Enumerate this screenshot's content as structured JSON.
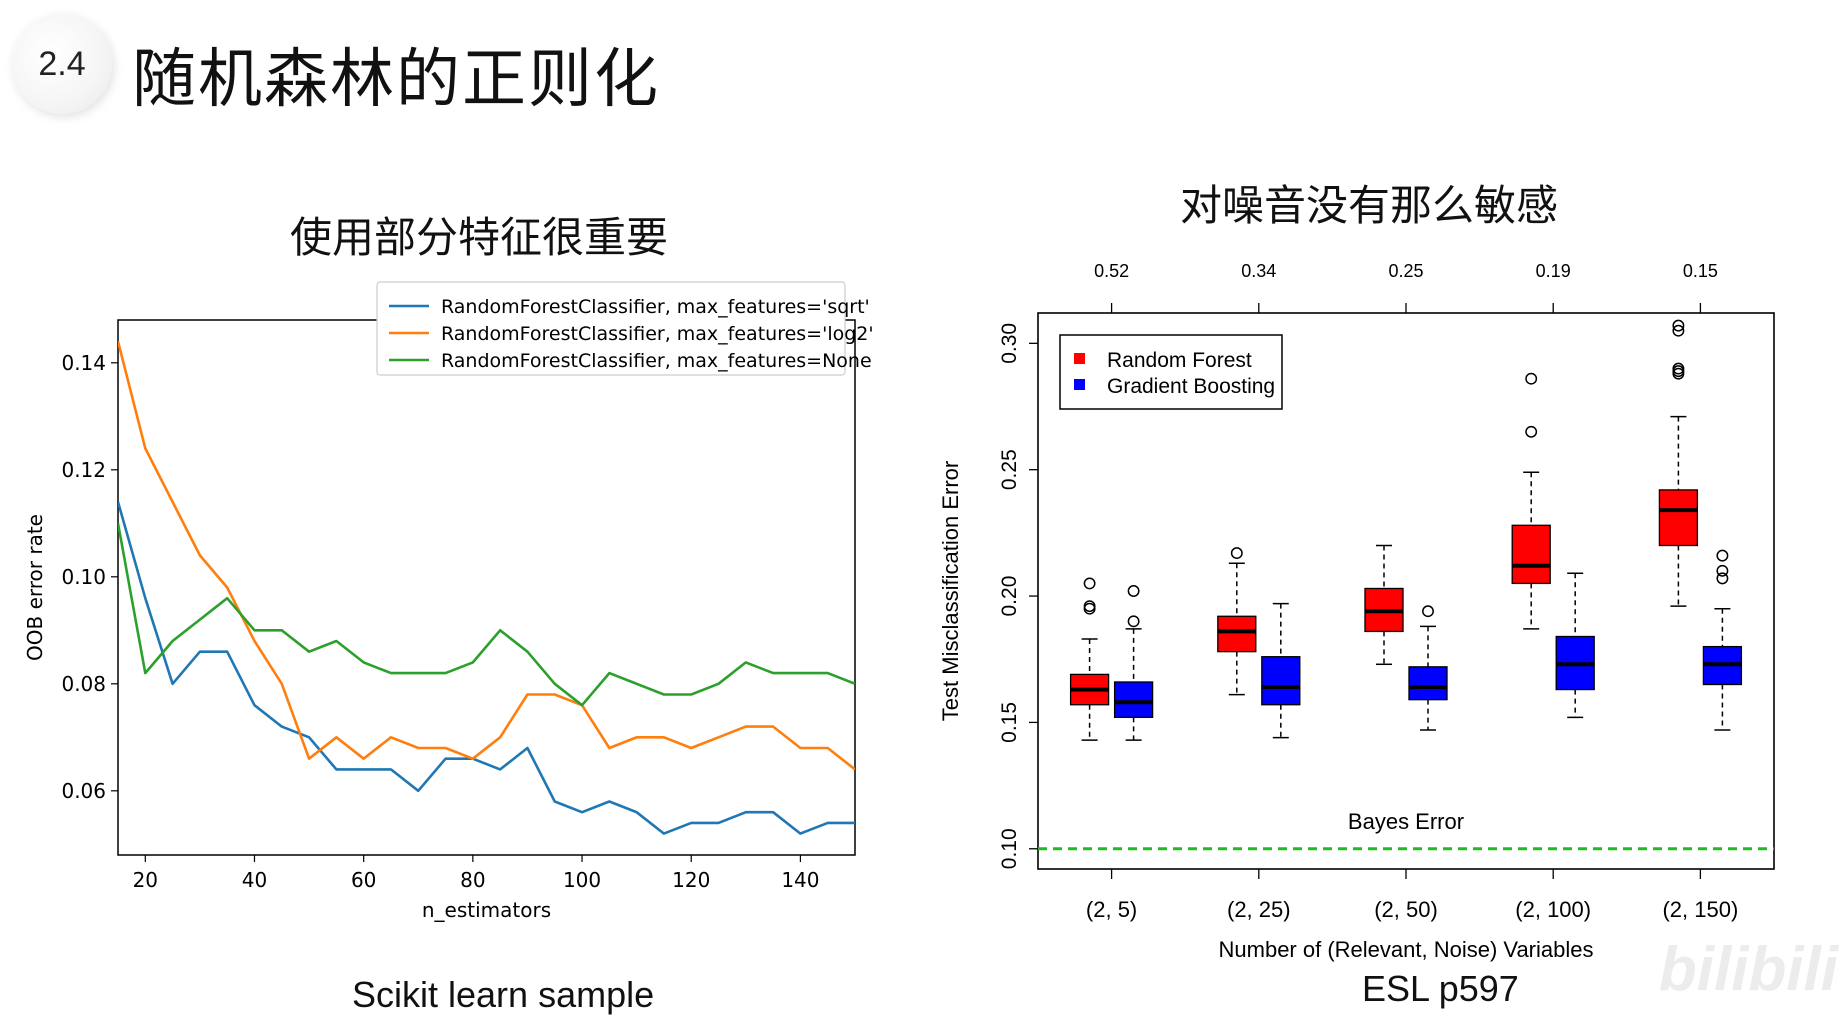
{
  "header": {
    "section_number": "2.4",
    "title": "随机森林的正则化"
  },
  "left_panel": {
    "subtitle": "使用部分特征很重要",
    "caption": "Scikit learn sample"
  },
  "right_panel": {
    "subtitle": "对噪音没有那么敏感",
    "caption": "ESL p597"
  },
  "watermark": "bilibili",
  "colors": {
    "sqrt": "#1f77b4",
    "log2": "#ff7f0e",
    "none": "#2ca02c",
    "random_forest": "#ff0000",
    "gradient_boosting": "#0000ff",
    "bayes_line": "#22bb22"
  },
  "chart_data": [
    {
      "type": "line",
      "title": "",
      "xlabel": "n_estimators",
      "ylabel": "OOB error rate",
      "xlim": [
        15,
        150
      ],
      "ylim": [
        0.048,
        0.148
      ],
      "xticks": [
        20,
        40,
        60,
        80,
        100,
        120,
        140
      ],
      "yticks": [
        0.06,
        0.08,
        0.1,
        0.12,
        0.14
      ],
      "ytick_labels": [
        "0.06",
        "0.08",
        "0.10",
        "0.12",
        "0.14"
      ],
      "legend_position": "top-right",
      "x": [
        15,
        20,
        25,
        30,
        35,
        40,
        45,
        50,
        55,
        60,
        65,
        70,
        75,
        80,
        85,
        90,
        95,
        100,
        105,
        110,
        115,
        120,
        125,
        130,
        135,
        140,
        145,
        150
      ],
      "series": [
        {
          "name": "RandomForestClassifier, max_features='sqrt'",
          "color_key": "sqrt",
          "values": [
            0.114,
            0.096,
            0.08,
            0.086,
            0.086,
            0.076,
            0.072,
            0.07,
            0.064,
            0.064,
            0.064,
            0.06,
            0.066,
            0.066,
            0.064,
            0.068,
            0.058,
            0.056,
            0.058,
            0.056,
            0.052,
            0.054,
            0.054,
            0.056,
            0.056,
            0.052,
            0.054,
            0.054
          ]
        },
        {
          "name": "RandomForestClassifier, max_features='log2'",
          "color_key": "log2",
          "values": [
            0.144,
            0.124,
            0.114,
            0.104,
            0.098,
            0.088,
            0.08,
            0.066,
            0.07,
            0.066,
            0.07,
            0.068,
            0.068,
            0.066,
            0.07,
            0.078,
            0.078,
            0.076,
            0.068,
            0.07,
            0.07,
            0.068,
            0.07,
            0.072,
            0.072,
            0.068,
            0.068,
            0.064
          ]
        },
        {
          "name": "RandomForestClassifier, max_features=None",
          "color_key": "none",
          "values": [
            0.11,
            0.082,
            0.088,
            0.092,
            0.096,
            0.09,
            0.09,
            0.086,
            0.088,
            0.084,
            0.082,
            0.082,
            0.082,
            0.084,
            0.09,
            0.086,
            0.08,
            0.076,
            0.082,
            0.08,
            0.078,
            0.078,
            0.08,
            0.084,
            0.082,
            0.082,
            0.082,
            0.08
          ]
        }
      ]
    },
    {
      "type": "box",
      "title": "",
      "xlabel": "Number of (Relevant, Noise) Variables",
      "ylabel": "Test Misclassification Error",
      "ylim": [
        0.092,
        0.312
      ],
      "yticks": [
        0.1,
        0.15,
        0.2,
        0.25,
        0.3
      ],
      "ytick_labels": [
        "0.10",
        "0.15",
        "0.20",
        "0.25",
        "0.30"
      ],
      "categories": [
        "(2, 5)",
        "(2, 25)",
        "(2, 50)",
        "(2, 100)",
        "(2, 150)"
      ],
      "top_axis_labels": [
        "0.52",
        "0.34",
        "0.25",
        "0.19",
        "0.15"
      ],
      "legend_position": "top-left",
      "reference_line": {
        "label": "Bayes Error",
        "value": 0.1
      },
      "series": [
        {
          "name": "Random Forest",
          "color_key": "random_forest",
          "boxes": [
            {
              "min": 0.143,
              "q1": 0.157,
              "median": 0.163,
              "q3": 0.169,
              "max": 0.183,
              "outliers": [
                0.195,
                0.196,
                0.205
              ]
            },
            {
              "min": 0.161,
              "q1": 0.178,
              "median": 0.186,
              "q3": 0.192,
              "max": 0.213,
              "outliers": [
                0.217
              ]
            },
            {
              "min": 0.173,
              "q1": 0.186,
              "median": 0.194,
              "q3": 0.203,
              "max": 0.22,
              "outliers": []
            },
            {
              "min": 0.187,
              "q1": 0.205,
              "median": 0.212,
              "q3": 0.228,
              "max": 0.249,
              "outliers": [
                0.265,
                0.286
              ]
            },
            {
              "min": 0.196,
              "q1": 0.22,
              "median": 0.234,
              "q3": 0.242,
              "max": 0.271,
              "outliers": [
                0.288,
                0.289,
                0.29,
                0.305,
                0.307
              ]
            }
          ]
        },
        {
          "name": "Gradient Boosting",
          "color_key": "gradient_boosting",
          "boxes": [
            {
              "min": 0.143,
              "q1": 0.152,
              "median": 0.158,
              "q3": 0.166,
              "max": 0.187,
              "outliers": [
                0.19,
                0.202
              ]
            },
            {
              "min": 0.144,
              "q1": 0.157,
              "median": 0.164,
              "q3": 0.176,
              "max": 0.197,
              "outliers": []
            },
            {
              "min": 0.147,
              "q1": 0.159,
              "median": 0.164,
              "q3": 0.172,
              "max": 0.188,
              "outliers": [
                0.194
              ]
            },
            {
              "min": 0.152,
              "q1": 0.163,
              "median": 0.173,
              "q3": 0.184,
              "max": 0.209,
              "outliers": []
            },
            {
              "min": 0.147,
              "q1": 0.165,
              "median": 0.173,
              "q3": 0.18,
              "max": 0.195,
              "outliers": [
                0.207,
                0.21,
                0.216
              ]
            }
          ]
        }
      ]
    }
  ]
}
